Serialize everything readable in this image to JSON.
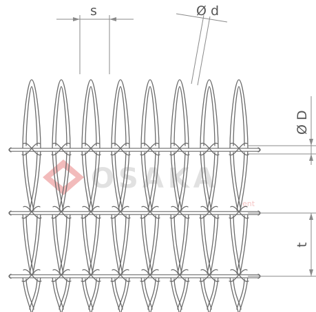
{
  "labels": {
    "pitch_s": "s",
    "wire_d": "Ø d",
    "coil_D": "Ø D",
    "pitch_t": "t"
  },
  "watermark": {
    "brand": "OSAKA",
    "tagline": "ent"
  },
  "colors": {
    "wire": "#6a6a6a",
    "dimension": "#8a8a8a",
    "watermark_logo": "#e36b6b"
  }
}
